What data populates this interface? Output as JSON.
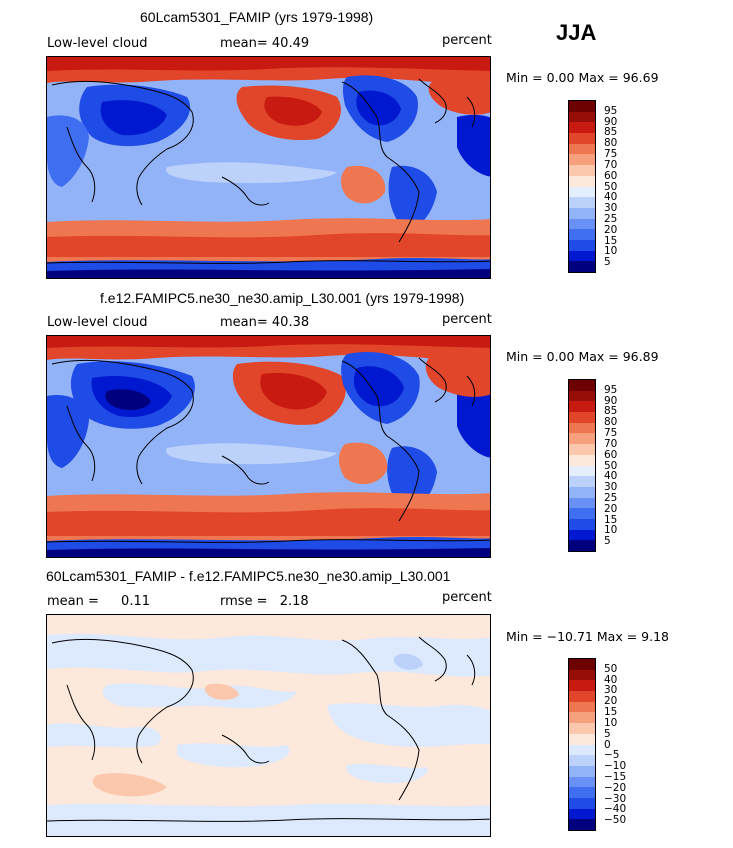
{
  "season": "JJA",
  "colors": {
    "full": [
      "#00007f",
      "#0019d0",
      "#1f4be6",
      "#3f6ef0",
      "#6890f5",
      "#93b3f8",
      "#bcd2fb",
      "#e4eefc",
      "#fde8dc",
      "#fbc8ad",
      "#f6a07d",
      "#ee7650",
      "#e2462a",
      "#c81a10",
      "#970d07",
      "#6d0000"
    ],
    "diff": [
      "#00007f",
      "#0019d0",
      "#1f4be6",
      "#3f6ef0",
      "#6890f5",
      "#93b3f8",
      "#bcd2fb",
      "#dde9fc",
      "#fde8dc",
      "#fbc8ad",
      "#f6a07d",
      "#ee7650",
      "#e2462a",
      "#c81a10",
      "#970d07",
      "#6d0000"
    ]
  },
  "panels": [
    {
      "title": "60Lcam5301_FAMIP (yrs 1979-1998)",
      "left_label": "Low-level cloud",
      "stat_label": "mean=",
      "stat_value": "40.49",
      "units": "percent",
      "min_label": "Min =",
      "min_value": "0.00",
      "max_label": "Max =",
      "max_value": "96.69",
      "levels": [
        "95",
        "90",
        "85",
        "80",
        "75",
        "70",
        "60",
        "50",
        "40",
        "30",
        "25",
        "20",
        "15",
        "10",
        "5"
      ]
    },
    {
      "title": "f.e12.FAMIPC5.ne30_ne30.amip_L30.001 (yrs 1979-1998)",
      "left_label": "Low-level cloud",
      "stat_label": "mean=",
      "stat_value": "40.38",
      "units": "percent",
      "min_label": "Min =",
      "min_value": "0.00",
      "max_label": "Max =",
      "max_value": "96.89",
      "levels": [
        "95",
        "90",
        "85",
        "80",
        "75",
        "70",
        "60",
        "50",
        "40",
        "30",
        "25",
        "20",
        "15",
        "10",
        "5"
      ]
    },
    {
      "title": "60Lcam5301_FAMIP - f.e12.FAMIPC5.ne30_ne30.amip_L30.001",
      "left_label": "mean =",
      "left_value": "0.11",
      "stat_label": "rmse =",
      "stat_value": "2.18",
      "units": "percent",
      "min_label": "Min =",
      "min_value": "−10.71",
      "max_label": "Max =",
      "max_value": "9.18",
      "levels": [
        "50",
        "40",
        "30",
        "20",
        "15",
        "10",
        "5",
        "0",
        "−5",
        "−10",
        "−15",
        "−20",
        "−30",
        "−40",
        "−50"
      ]
    }
  ]
}
